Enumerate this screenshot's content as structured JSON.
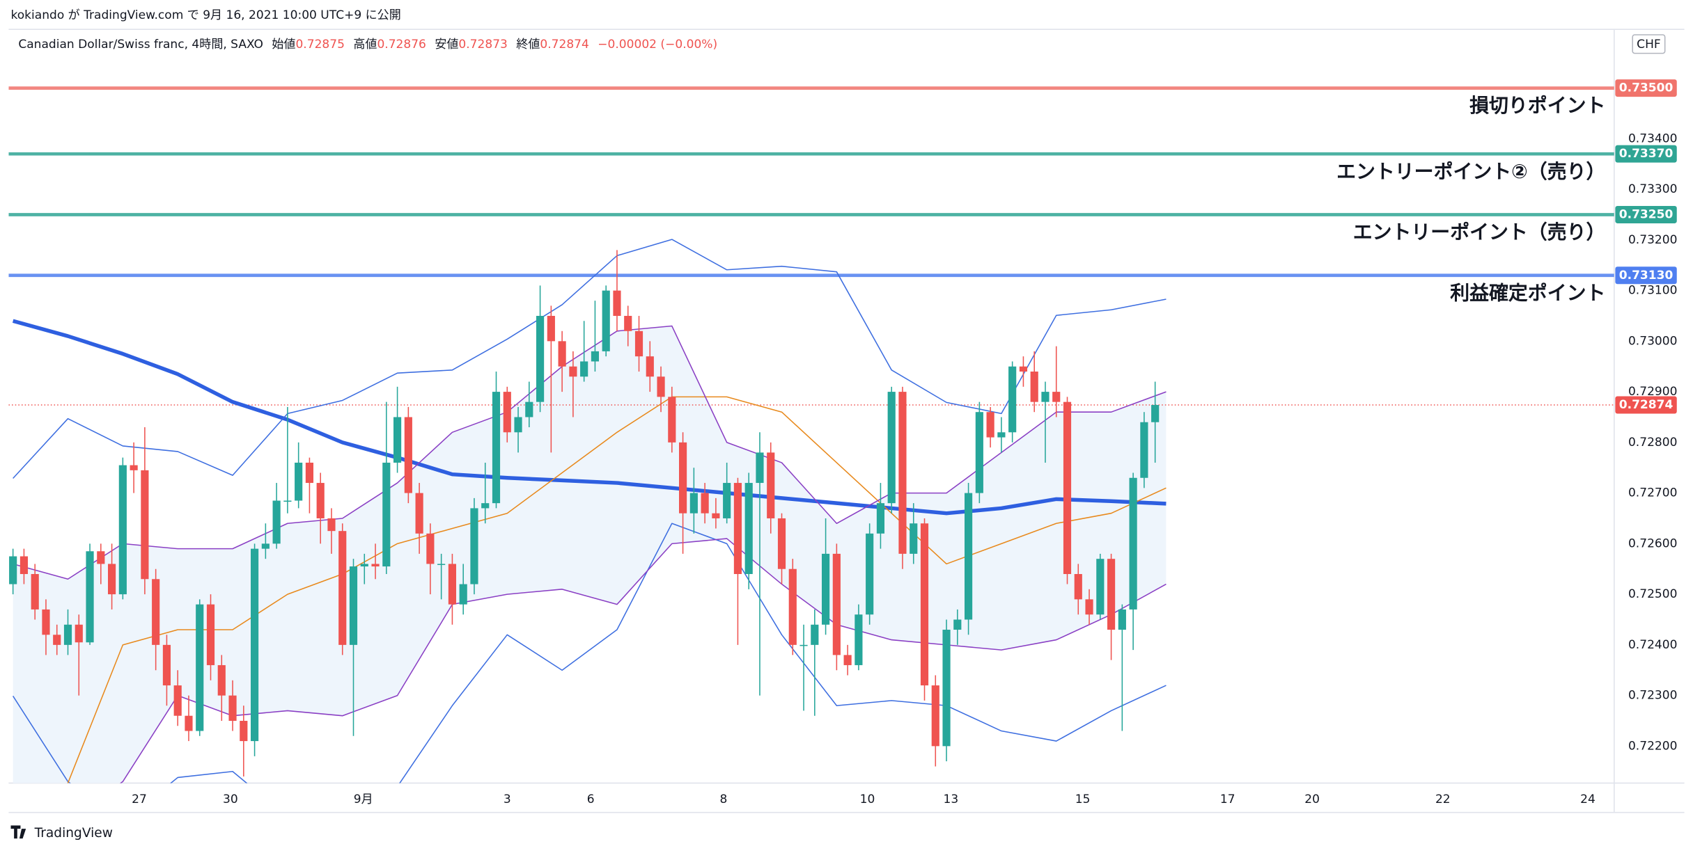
{
  "chart_data": {
    "type": "candlestick",
    "published": "kokiando が TradingView.com で 9月 16, 2021 10:00 UTC+9 に公開",
    "title": "Canadian Dollar/Swiss franc, 4時間, SAXO",
    "ohlc_legend": [
      {
        "label": "始値",
        "value": 0.72875
      },
      {
        "label": "高値",
        "value": 0.72876
      },
      {
        "label": "安値",
        "value": 0.72873
      },
      {
        "label": "終値",
        "value": 0.72874
      }
    ],
    "change": "−0.00002 (−0.00%)",
    "currency": "CHF",
    "brand": "TradingView",
    "up_color": "#26a69a",
    "down_color": "#ef5350",
    "ohlc": [
      [
        0.7252,
        0.7259,
        0.725,
        0.72575
      ],
      [
        0.72575,
        0.7259,
        0.7252,
        0.7254
      ],
      [
        0.7254,
        0.7256,
        0.7245,
        0.7247
      ],
      [
        0.7247,
        0.7249,
        0.7238,
        0.7242
      ],
      [
        0.7242,
        0.7244,
        0.7238,
        0.724
      ],
      [
        0.724,
        0.7247,
        0.7238,
        0.7244
      ],
      [
        0.7244,
        0.7246,
        0.723,
        0.72405
      ],
      [
        0.72405,
        0.726,
        0.724,
        0.72585
      ],
      [
        0.72585,
        0.726,
        0.7252,
        0.7256
      ],
      [
        0.7256,
        0.726,
        0.7247,
        0.725
      ],
      [
        0.725,
        0.7277,
        0.7249,
        0.72755
      ],
      [
        0.72755,
        0.728,
        0.727,
        0.72745
      ],
      [
        0.72745,
        0.7283,
        0.725,
        0.7253
      ],
      [
        0.7253,
        0.7255,
        0.7235,
        0.724
      ],
      [
        0.724,
        0.7242,
        0.7228,
        0.7232
      ],
      [
        0.7232,
        0.7235,
        0.7224,
        0.7226
      ],
      [
        0.7226,
        0.723,
        0.7221,
        0.7223
      ],
      [
        0.7223,
        0.7249,
        0.7222,
        0.7248
      ],
      [
        0.7248,
        0.725,
        0.7233,
        0.7236
      ],
      [
        0.7236,
        0.7238,
        0.7225,
        0.723
      ],
      [
        0.723,
        0.7233,
        0.7223,
        0.7225
      ],
      [
        0.7225,
        0.7228,
        0.7214,
        0.7221
      ],
      [
        0.7221,
        0.726,
        0.7218,
        0.7259
      ],
      [
        0.7259,
        0.7264,
        0.7257,
        0.726
      ],
      [
        0.726,
        0.7272,
        0.7259,
        0.72685
      ],
      [
        0.72685,
        0.7287,
        0.7266,
        0.72685
      ],
      [
        0.72685,
        0.728,
        0.7267,
        0.7276
      ],
      [
        0.7276,
        0.7277,
        0.7266,
        0.7272
      ],
      [
        0.7272,
        0.7274,
        0.726,
        0.7265
      ],
      [
        0.7265,
        0.7267,
        0.7258,
        0.72625
      ],
      [
        0.72625,
        0.7264,
        0.7238,
        0.724
      ],
      [
        0.724,
        0.7257,
        0.7222,
        0.72555
      ],
      [
        0.72555,
        0.7258,
        0.7252,
        0.7256
      ],
      [
        0.7256,
        0.726,
        0.7253,
        0.72555
      ],
      [
        0.72555,
        0.7288,
        0.7254,
        0.7276
      ],
      [
        0.7276,
        0.7291,
        0.7274,
        0.7285
      ],
      [
        0.7285,
        0.7287,
        0.7268,
        0.727
      ],
      [
        0.727,
        0.7272,
        0.7258,
        0.7262
      ],
      [
        0.7262,
        0.7264,
        0.725,
        0.7256
      ],
      [
        0.7256,
        0.7258,
        0.7249,
        0.7256
      ],
      [
        0.7256,
        0.7258,
        0.7244,
        0.7248
      ],
      [
        0.7248,
        0.7256,
        0.7246,
        0.7252
      ],
      [
        0.7252,
        0.7269,
        0.725,
        0.7267
      ],
      [
        0.7267,
        0.7276,
        0.7264,
        0.7268
      ],
      [
        0.7268,
        0.7294,
        0.7267,
        0.729
      ],
      [
        0.729,
        0.7291,
        0.728,
        0.7282
      ],
      [
        0.7282,
        0.7287,
        0.7278,
        0.7285
      ],
      [
        0.7285,
        0.7292,
        0.7283,
        0.7288
      ],
      [
        0.7288,
        0.7311,
        0.7286,
        0.7305
      ],
      [
        0.7305,
        0.7307,
        0.7278,
        0.73
      ],
      [
        0.73,
        0.7302,
        0.729,
        0.7295
      ],
      [
        0.7295,
        0.7298,
        0.7285,
        0.7293
      ],
      [
        0.7293,
        0.7304,
        0.7292,
        0.7296
      ],
      [
        0.7296,
        0.7308,
        0.7294,
        0.7298
      ],
      [
        0.7298,
        0.7311,
        0.7297,
        0.731
      ],
      [
        0.731,
        0.7318,
        0.7302,
        0.7305
      ],
      [
        0.7305,
        0.7307,
        0.7299,
        0.7302
      ],
      [
        0.7302,
        0.7305,
        0.7294,
        0.7297
      ],
      [
        0.7297,
        0.73,
        0.729,
        0.7293
      ],
      [
        0.7293,
        0.7295,
        0.7286,
        0.7289
      ],
      [
        0.7289,
        0.7291,
        0.7278,
        0.728
      ],
      [
        0.728,
        0.7282,
        0.7258,
        0.7266
      ],
      [
        0.7266,
        0.7275,
        0.7262,
        0.727
      ],
      [
        0.727,
        0.7272,
        0.7264,
        0.7266
      ],
      [
        0.7266,
        0.7269,
        0.7263,
        0.7265
      ],
      [
        0.7265,
        0.7276,
        0.7264,
        0.7272
      ],
      [
        0.7272,
        0.7273,
        0.724,
        0.7254
      ],
      [
        0.7254,
        0.7274,
        0.7251,
        0.7272
      ],
      [
        0.7272,
        0.7282,
        0.723,
        0.7278
      ],
      [
        0.7278,
        0.728,
        0.7262,
        0.7265
      ],
      [
        0.7265,
        0.7266,
        0.7252,
        0.7255
      ],
      [
        0.7255,
        0.7257,
        0.7238,
        0.724
      ],
      [
        0.724,
        0.7244,
        0.7227,
        0.724
      ],
      [
        0.724,
        0.7247,
        0.7226,
        0.7244
      ],
      [
        0.7244,
        0.7265,
        0.7242,
        0.7258
      ],
      [
        0.7258,
        0.726,
        0.7235,
        0.7238
      ],
      [
        0.7238,
        0.724,
        0.7234,
        0.7236
      ],
      [
        0.7236,
        0.7248,
        0.7235,
        0.7246
      ],
      [
        0.7246,
        0.7264,
        0.7244,
        0.7262
      ],
      [
        0.7262,
        0.7272,
        0.7259,
        0.7268
      ],
      [
        0.7268,
        0.7291,
        0.7266,
        0.729
      ],
      [
        0.729,
        0.7291,
        0.7255,
        0.7258
      ],
      [
        0.7258,
        0.7268,
        0.7256,
        0.7264
      ],
      [
        0.7264,
        0.7265,
        0.7229,
        0.7232
      ],
      [
        0.7232,
        0.7234,
        0.7216,
        0.722
      ],
      [
        0.722,
        0.7245,
        0.7217,
        0.7243
      ],
      [
        0.7243,
        0.7247,
        0.724,
        0.7245
      ],
      [
        0.7245,
        0.7272,
        0.7242,
        0.727
      ],
      [
        0.727,
        0.7288,
        0.7268,
        0.7286
      ],
      [
        0.7286,
        0.7287,
        0.7279,
        0.7281
      ],
      [
        0.7281,
        0.7285,
        0.7278,
        0.7282
      ],
      [
        0.7282,
        0.7296,
        0.728,
        0.7295
      ],
      [
        0.7295,
        0.7297,
        0.7291,
        0.7294
      ],
      [
        0.7294,
        0.7298,
        0.7286,
        0.7288
      ],
      [
        0.7288,
        0.7292,
        0.7276,
        0.729
      ],
      [
        0.729,
        0.7299,
        0.7285,
        0.7288
      ],
      [
        0.7288,
        0.7289,
        0.7252,
        0.7254
      ],
      [
        0.7254,
        0.7256,
        0.7246,
        0.7249
      ],
      [
        0.7249,
        0.7251,
        0.7244,
        0.7246
      ],
      [
        0.7246,
        0.7258,
        0.7245,
        0.7257
      ],
      [
        0.7257,
        0.7258,
        0.7237,
        0.7243
      ],
      [
        0.7243,
        0.7248,
        0.7223,
        0.7247
      ],
      [
        0.7247,
        0.7274,
        0.7239,
        0.7273
      ],
      [
        0.7273,
        0.7286,
        0.7271,
        0.7284
      ],
      [
        0.7284,
        0.7292,
        0.7276,
        0.72874
      ]
    ],
    "indicator_x": [
      0,
      5,
      10,
      15,
      20,
      25,
      30,
      35,
      40,
      45,
      50,
      55,
      60,
      65,
      70,
      75,
      80,
      85,
      90,
      95,
      100,
      105
    ],
    "indicators": [
      {
        "color": "#2e5fe0",
        "width": 3.5,
        "values": [
          0.7304,
          0.7301,
          0.72975,
          0.72935,
          0.7288,
          0.72845,
          0.728,
          0.7277,
          0.72737,
          0.7273,
          0.72725,
          0.7272,
          0.7271,
          0.727,
          0.7269,
          0.7268,
          0.7267,
          0.7266,
          0.7267,
          0.72688,
          0.72684,
          0.72679
        ]
      },
      {
        "color": "#3d6ee0",
        "width": 1,
        "values": [
          0.72729,
          0.72847,
          0.72793,
          0.72782,
          0.72735,
          0.72857,
          0.72883,
          0.72937,
          0.72943,
          0.73004,
          0.73072,
          0.73169,
          0.73201,
          0.73141,
          0.73148,
          0.73137,
          0.72943,
          0.72879,
          0.72857,
          0.73051,
          0.73062,
          0.73083
        ]
      },
      {
        "color": "#3d6ee0",
        "width": 1,
        "values": [
          0.72299,
          0.7213,
          0.7205,
          0.72138,
          0.7215,
          0.7206,
          0.7205,
          0.7212,
          0.7228,
          0.7242,
          0.7235,
          0.7243,
          0.7264,
          0.726,
          0.7242,
          0.7228,
          0.7229,
          0.7228,
          0.7223,
          0.7221,
          0.7227,
          0.7232
        ]
      },
      {
        "color": "#e8891c",
        "width": 1,
        "values": [
          0.72,
          0.72127,
          0.724,
          0.7243,
          0.7243,
          0.725,
          0.7254,
          0.726,
          0.7263,
          0.7266,
          0.7274,
          0.7282,
          0.7289,
          0.7289,
          0.7286,
          0.7276,
          0.7266,
          0.7256,
          0.726,
          0.7264,
          0.7266,
          0.7271
        ]
      },
      {
        "color": "#8a3fc4",
        "width": 1,
        "values": [
          0.7256,
          0.7253,
          0.726,
          0.7259,
          0.7259,
          0.7264,
          0.7265,
          0.7272,
          0.7282,
          0.7286,
          0.7295,
          0.7302,
          0.7303,
          0.728,
          0.7276,
          0.7264,
          0.727,
          0.727,
          0.7278,
          0.7286,
          0.7286,
          0.729
        ]
      },
      {
        "color": "#8a3fc4",
        "width": 1,
        "values": [
          0.72,
          0.7205,
          0.7213,
          0.723,
          0.7226,
          0.7227,
          0.7226,
          0.723,
          0.7248,
          0.725,
          0.7251,
          0.7248,
          0.726,
          0.7261,
          0.7252,
          0.7244,
          0.7241,
          0.724,
          0.7239,
          0.7241,
          0.7246,
          0.7252
        ]
      }
    ],
    "band_fill": "#eef5fc",
    "levels": [
      {
        "name": "損切りポイント",
        "value": 0.735,
        "label": "0.73500",
        "color": "#f0736b"
      },
      {
        "name": "エントリーポイント②（売り）",
        "value": 0.7337,
        "label": "0.73370",
        "color": "#2fa594"
      },
      {
        "name": "エントリーポイント（売り）",
        "value": 0.7325,
        "label": "0.73250",
        "color": "#2fa594"
      },
      {
        "name": "利益確定ポイント",
        "value": 0.7313,
        "label": "0.73130",
        "color": "#4f7ff0"
      }
    ],
    "last_price": {
      "value": 0.72874,
      "label": "0.72874",
      "color": "#ef5350"
    },
    "xlim": [
      -0.2,
      145.8
    ],
    "xticks": [
      {
        "value": 11.5,
        "label": "27"
      },
      {
        "value": 19.8,
        "label": "30"
      },
      {
        "value": 31.9,
        "label": "9月"
      },
      {
        "value": 45,
        "label": "3"
      },
      {
        "value": 52.6,
        "label": "6"
      },
      {
        "value": 64.7,
        "label": "8"
      },
      {
        "value": 77.8,
        "label": "10"
      },
      {
        "value": 85.4,
        "label": "13"
      },
      {
        "value": 97.4,
        "label": "15"
      },
      {
        "value": 110.6,
        "label": "17"
      },
      {
        "value": 118.3,
        "label": "20"
      },
      {
        "value": 130.2,
        "label": "22"
      },
      {
        "value": 143.4,
        "label": "24"
      }
    ],
    "ylim": [
      0.72127,
      0.73616
    ],
    "yticks": [
      {
        "value": 0.722,
        "label": "0.72200"
      },
      {
        "value": 0.723,
        "label": "0.72300"
      },
      {
        "value": 0.724,
        "label": "0.72400"
      },
      {
        "value": 0.725,
        "label": "0.72500"
      },
      {
        "value": 0.726,
        "label": "0.72600"
      },
      {
        "value": 0.727,
        "label": "0.72700"
      },
      {
        "value": 0.728,
        "label": "0.72800"
      },
      {
        "value": 0.729,
        "label": "0.72900"
      },
      {
        "value": 0.73,
        "label": "0.73000"
      },
      {
        "value": 0.731,
        "label": "0.73100"
      },
      {
        "value": 0.732,
        "label": "0.73200"
      },
      {
        "value": 0.733,
        "label": "0.73300"
      },
      {
        "value": 0.734,
        "label": "0.73400"
      }
    ],
    "grid": false
  }
}
